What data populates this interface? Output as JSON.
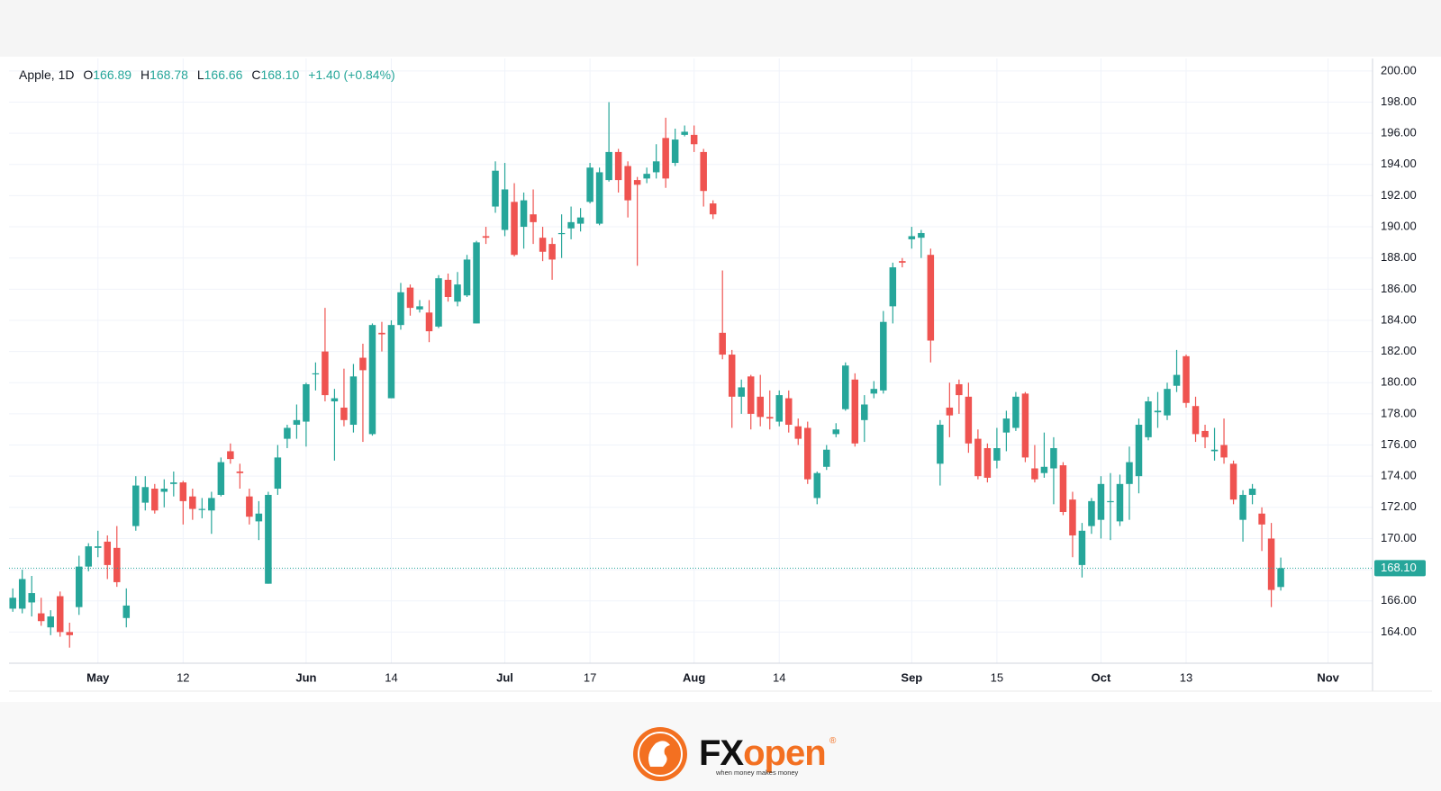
{
  "chart_data": {
    "type": "candlestick",
    "title": "Apple, 1D",
    "ohlc_legend": [
      {
        "label": "O",
        "value": "166.89"
      },
      {
        "label": "H",
        "value": "168.78"
      },
      {
        "label": "L",
        "value": "166.66"
      },
      {
        "label": "C",
        "value": "168.10"
      }
    ],
    "change": "+1.40 (+0.84%)",
    "up_color": "#26a69a",
    "down_color": "#ef5350",
    "grid": true,
    "open": [
      165.5,
      165.5,
      165.9,
      165.2,
      164.3,
      166.3,
      164,
      165.6,
      168.2,
      169.4,
      169.8,
      169.4,
      164.9,
      170.8,
      172.3,
      173.2,
      173,
      173.5,
      173.6,
      172.7,
      171.9,
      171.8,
      172.8,
      175.6,
      174.3,
      172.7,
      171.1,
      167.1,
      173.2,
      176.4,
      177.3,
      177.5,
      180.6,
      182,
      178.8,
      178.4,
      177.3,
      181.6,
      176.7,
      183.2,
      179,
      183.7,
      186.1,
      184.7,
      184.5,
      183.6,
      186.6,
      185.2,
      185.6,
      183.8,
      189.4,
      191.3,
      189.8,
      191.6,
      190,
      190.8,
      189.3,
      188.9,
      189.6,
      189.9,
      190.2,
      191.6,
      190.2,
      193,
      194.8,
      193.9,
      193,
      193.1,
      193.5,
      195.7,
      194.1,
      195.9,
      195.9,
      194.8,
      191.5,
      183.2,
      181.8,
      179.1,
      180.4,
      179.1,
      177.8,
      177.5,
      179,
      177.2,
      177.1,
      172.6,
      174.6,
      176.7,
      178.3,
      180.2,
      177.6,
      179.3,
      179.5,
      184.9,
      187.8,
      189.2,
      189.3,
      188.2,
      174.8,
      178.4,
      179.9,
      179.1,
      176.4,
      175.8,
      175,
      176.8,
      177.1,
      179.3,
      174.5,
      174.2,
      174.5,
      174.7,
      172.5,
      168.3,
      170.8,
      171.2,
      172.4,
      171.1,
      173.5,
      174,
      176.5,
      178.1,
      177.9,
      179.8,
      181.7,
      178.5,
      176.9,
      175.6,
      176,
      174.8,
      171.2,
      172.8,
      171.6,
      170,
      166.89
    ],
    "high": [
      166.8,
      168,
      167.6,
      166.2,
      165.4,
      166.6,
      164.6,
      168.9,
      169.7,
      170.5,
      170.2,
      170.8,
      166.8,
      174,
      174,
      173.5,
      173.8,
      174.3,
      173.7,
      173.2,
      172.6,
      173,
      175.2,
      176.1,
      174.8,
      173.2,
      172.4,
      173,
      176,
      177.3,
      178.6,
      180,
      181.3,
      184.8,
      179.6,
      180.9,
      181.2,
      182.5,
      183.8,
      183.9,
      184,
      186.4,
      186.3,
      185.3,
      185.3,
      186.9,
      187,
      187.1,
      188.2,
      189.1,
      190,
      194.2,
      194.1,
      192.8,
      192.2,
      192.4,
      190,
      189.3,
      190.8,
      191.3,
      191.2,
      194.1,
      193.8,
      198,
      195,
      194.2,
      193.2,
      193.8,
      195.3,
      197,
      196.3,
      196.5,
      196.5,
      195,
      191.7,
      187.2,
      182.1,
      180.2,
      180.5,
      180.5,
      179.5,
      179.5,
      179.5,
      177.7,
      177.5,
      174.3,
      176,
      177.4,
      181.3,
      180.6,
      179.2,
      180.1,
      184.6,
      187.7,
      188,
      190,
      189.8,
      188.6,
      177.6,
      180,
      180.2,
      180,
      177,
      176.1,
      177.1,
      178.2,
      179.4,
      179.4,
      176,
      176.8,
      176.5,
      174.9,
      173,
      171,
      172.6,
      174,
      174.2,
      174.1,
      175.9,
      177.7,
      179.1,
      179.4,
      180,
      182.1,
      181.8,
      179.1,
      177.3,
      177.1,
      177.7,
      175,
      173.1,
      173.5,
      172,
      171,
      168.78
    ],
    "low": [
      165.3,
      165.2,
      165,
      164.4,
      163.8,
      163.7,
      163,
      165.1,
      167.9,
      168.8,
      167.4,
      166.9,
      164.3,
      170.5,
      171.8,
      171.6,
      172,
      172.7,
      170.9,
      171.2,
      171.3,
      170.3,
      172.7,
      174.8,
      173.2,
      170.9,
      169.9,
      167.1,
      172.8,
      175.8,
      176.4,
      175.9,
      179.5,
      178.8,
      175,
      177.2,
      176.8,
      176.2,
      176.6,
      182,
      179,
      183.4,
      184.3,
      184.5,
      182.6,
      183.5,
      185.2,
      184.9,
      185.5,
      183.8,
      188.9,
      190.9,
      189.4,
      188.1,
      188.6,
      188.9,
      187.8,
      186.6,
      188,
      189.2,
      189.7,
      191.5,
      190.1,
      192.9,
      192.2,
      190.6,
      187.5,
      192.8,
      193.1,
      192.5,
      193.9,
      195.8,
      194.8,
      191.3,
      190.5,
      181.5,
      177.1,
      178,
      177,
      177.2,
      177,
      177.2,
      176.8,
      176,
      173.5,
      172.2,
      174.4,
      176.5,
      178.2,
      175.9,
      176.2,
      179,
      179.3,
      183.8,
      187.4,
      188.6,
      188,
      181.3,
      173.4,
      176.5,
      178,
      175.5,
      173.8,
      173.6,
      174.5,
      175.6,
      176.9,
      174.9,
      173.6,
      173.9,
      172.2,
      171.5,
      168.8,
      167.5,
      170.3,
      170,
      169.9,
      170.8,
      171.2,
      172.9,
      176.3,
      177.1,
      177.6,
      179.4,
      178.4,
      176.2,
      175.8,
      175,
      174.8,
      172.2,
      169.8,
      172.2,
      169.2,
      165.6,
      166.66
    ],
    "close": [
      166.2,
      167.4,
      166.5,
      164.7,
      165,
      164,
      163.8,
      168.2,
      169.5,
      169.5,
      168.3,
      167.2,
      165.7,
      173.4,
      173.3,
      171.8,
      173.2,
      173.6,
      172.4,
      171.9,
      171.9,
      172.6,
      174.9,
      175.1,
      174.2,
      171.4,
      171.6,
      172.8,
      175.2,
      177.1,
      177.6,
      179.9,
      180.6,
      179.2,
      179,
      177.6,
      180.4,
      180.8,
      183.7,
      183.1,
      183.7,
      185.8,
      184.8,
      184.9,
      183.3,
      186.7,
      185.5,
      186.3,
      187.9,
      189,
      189.3,
      193.6,
      192.4,
      188.2,
      191.7,
      190.3,
      188.4,
      187.9,
      189.6,
      190.3,
      190.6,
      193.8,
      193.5,
      194.8,
      193,
      191.7,
      192.7,
      193.4,
      194.2,
      193.1,
      195.6,
      196.1,
      195.3,
      192.3,
      190.8,
      181.8,
      179.1,
      179.7,
      178,
      177.8,
      177.7,
      179.2,
      177.3,
      176.4,
      173.8,
      174.2,
      175.7,
      177,
      181.1,
      176.1,
      178.6,
      179.6,
      183.9,
      187.4,
      187.7,
      189.4,
      189.6,
      182.7,
      177.3,
      177.9,
      179.2,
      176.1,
      174,
      173.9,
      175.8,
      177.7,
      179.1,
      175.2,
      173.8,
      174.6,
      175.8,
      171.7,
      170.2,
      170.5,
      172.4,
      173.5,
      172.4,
      173.5,
      174.9,
      177.3,
      178.8,
      178.2,
      179.6,
      180.5,
      178.7,
      176.7,
      176.5,
      175.7,
      175.2,
      172.5,
      172.8,
      173.2,
      170.9,
      166.7,
      168.1
    ],
    "last_price": {
      "value": 168.1,
      "label": "168.10"
    },
    "xlim": [
      -0.4,
      143.7
    ],
    "xticks": [
      {
        "value": 9,
        "label": "May"
      },
      {
        "value": 18,
        "label": "12"
      },
      {
        "value": 31,
        "label": "Jun"
      },
      {
        "value": 40,
        "label": "14"
      },
      {
        "value": 52,
        "label": "Jul"
      },
      {
        "value": 61,
        "label": "17"
      },
      {
        "value": 72,
        "label": "Aug"
      },
      {
        "value": 81,
        "label": "14"
      },
      {
        "value": 95,
        "label": "Sep"
      },
      {
        "value": 104,
        "label": "15"
      },
      {
        "value": 115,
        "label": "Oct"
      },
      {
        "value": 124,
        "label": "13"
      },
      {
        "value": 139,
        "label": "Nov"
      }
    ],
    "ylim": [
      162,
      200.8
    ],
    "yticks": [
      {
        "value": 164,
        "label": "164.00"
      },
      {
        "value": 166,
        "label": "166.00"
      },
      {
        "value": 168,
        "label": "168.00"
      },
      {
        "value": 170,
        "label": "170.00"
      },
      {
        "value": 172,
        "label": "172.00"
      },
      {
        "value": 174,
        "label": "174.00"
      },
      {
        "value": 176,
        "label": "176.00"
      },
      {
        "value": 178,
        "label": "178.00"
      },
      {
        "value": 180,
        "label": "180.00"
      },
      {
        "value": 182,
        "label": "182.00"
      },
      {
        "value": 184,
        "label": "184.00"
      },
      {
        "value": 186,
        "label": "186.00"
      },
      {
        "value": 188,
        "label": "188.00"
      },
      {
        "value": 190,
        "label": "190.00"
      },
      {
        "value": 192,
        "label": "192.00"
      },
      {
        "value": 194,
        "label": "194.00"
      },
      {
        "value": 196,
        "label": "196.00"
      },
      {
        "value": 198,
        "label": "198.00"
      },
      {
        "value": 200,
        "label": "200.00"
      }
    ]
  },
  "brand": {
    "name_1": "FX",
    "name_2": "open",
    "mark": "®",
    "tagline": "when money makes money"
  }
}
